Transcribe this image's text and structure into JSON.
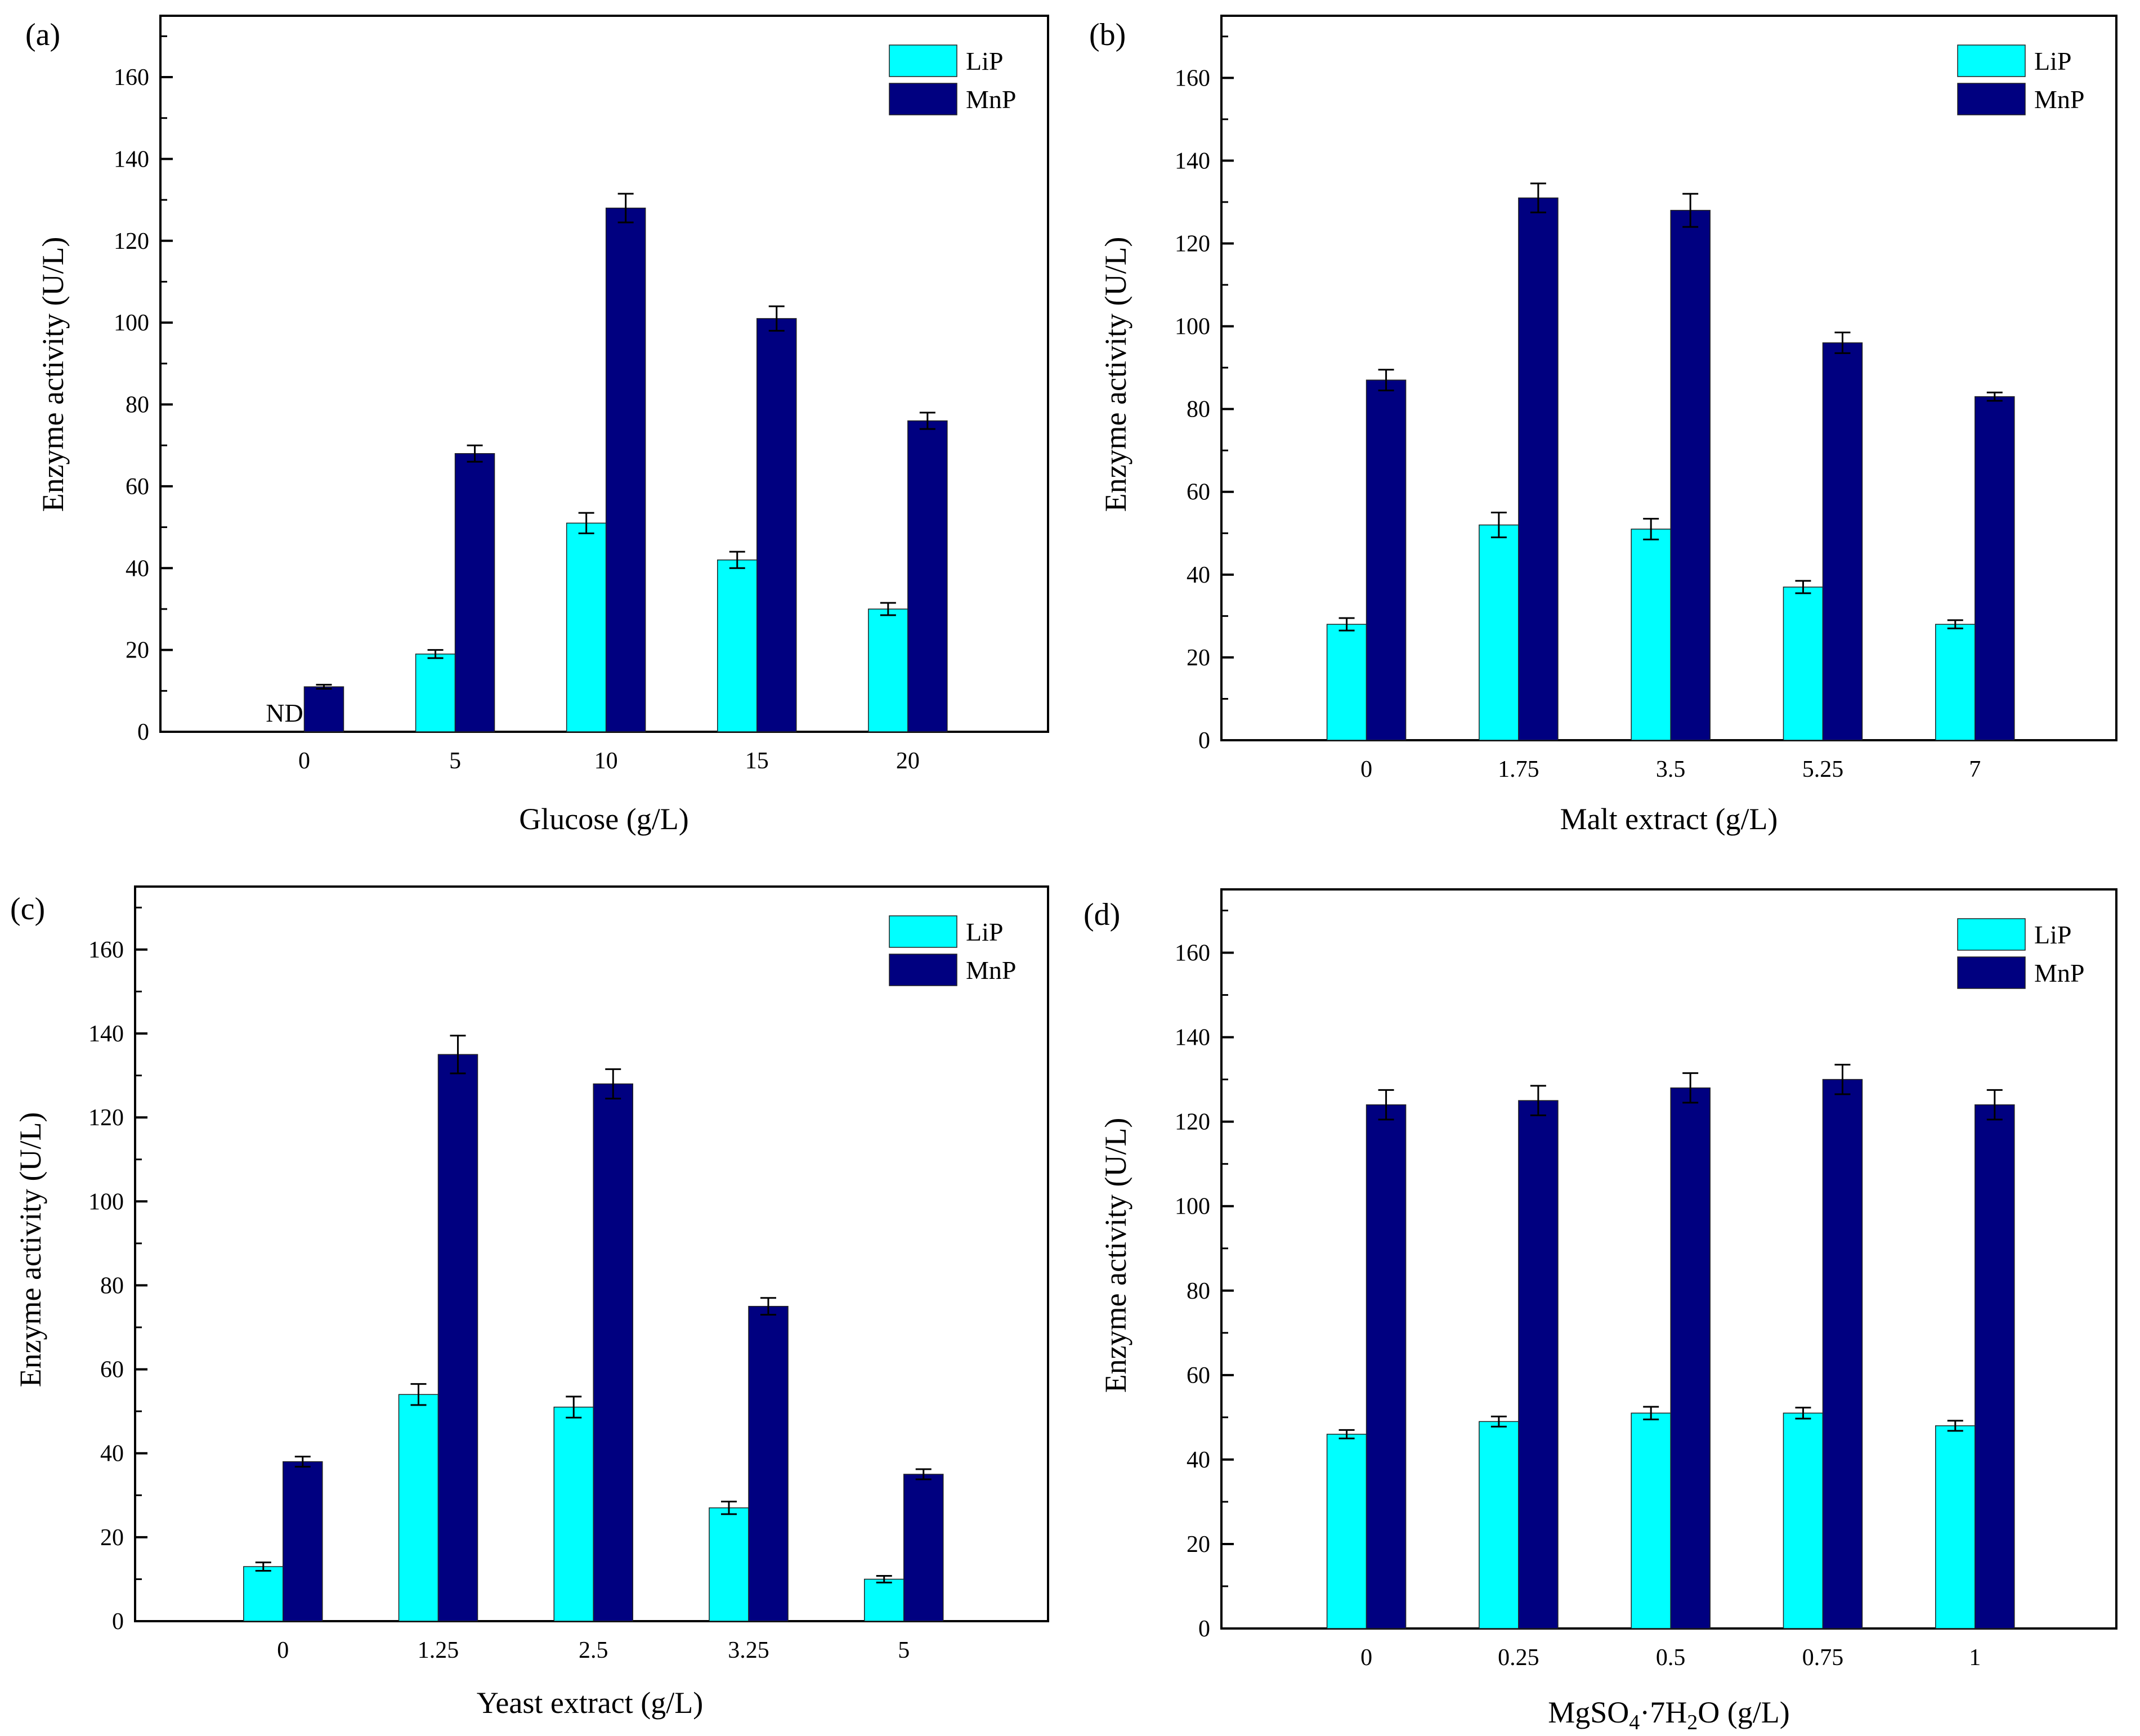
{
  "colors": {
    "lip": "#00FFFF",
    "mnp": "#000080",
    "axis": "#000000",
    "error_bar": "#000000"
  },
  "chart_data": [
    {
      "type": "bar",
      "panel_label": "(a)",
      "xlabel": "Glucose (g/L)",
      "ylabel": "Enzyme activity (U/L)",
      "ylim": [
        0,
        175
      ],
      "yticks": [
        0,
        20,
        40,
        60,
        80,
        100,
        120,
        140,
        160
      ],
      "legend_position": "top-right",
      "categories": [
        "0",
        "5",
        "10",
        "15",
        "20"
      ],
      "series": [
        {
          "name": "LiP",
          "values": [
            null,
            19,
            51,
            42,
            30
          ],
          "errors": [
            null,
            1,
            2.5,
            2,
            1.5
          ]
        },
        {
          "name": "MnP",
          "values": [
            11,
            68,
            128,
            101,
            76
          ],
          "errors": [
            0.5,
            2,
            3.5,
            3,
            2
          ]
        }
      ],
      "annotations": [
        {
          "text": "ND",
          "category": "0",
          "series": "LiP"
        }
      ]
    },
    {
      "type": "bar",
      "panel_label": "(b)",
      "xlabel": "Malt extract (g/L)",
      "ylabel": "Enzyme activity (U/L)",
      "ylim": [
        0,
        175
      ],
      "yticks": [
        0,
        20,
        40,
        60,
        80,
        100,
        120,
        140,
        160
      ],
      "legend_position": "top-right",
      "categories": [
        "0",
        "1.75",
        "3.5",
        "5.25",
        "7"
      ],
      "series": [
        {
          "name": "LiP",
          "values": [
            28,
            52,
            51,
            37,
            28
          ],
          "errors": [
            1.5,
            3,
            2.5,
            1.5,
            1
          ]
        },
        {
          "name": "MnP",
          "values": [
            87,
            131,
            128,
            96,
            83
          ],
          "errors": [
            2.5,
            3.5,
            4,
            2.5,
            1
          ]
        }
      ],
      "annotations": []
    },
    {
      "type": "bar",
      "panel_label": "(c)",
      "xlabel": "Yeast extract (g/L)",
      "ylabel": "Enzyme activity (U/L)",
      "ylim": [
        0,
        175
      ],
      "yticks": [
        0,
        20,
        40,
        60,
        80,
        100,
        120,
        140,
        160
      ],
      "legend_position": "top-right",
      "categories": [
        "0",
        "1.25",
        "2.5",
        "3.25",
        "5"
      ],
      "series": [
        {
          "name": "LiP",
          "values": [
            13,
            54,
            51,
            27,
            10
          ],
          "errors": [
            1,
            2.5,
            2.5,
            1.5,
            0.8
          ]
        },
        {
          "name": "MnP",
          "values": [
            38,
            135,
            128,
            75,
            35
          ],
          "errors": [
            1.2,
            4.5,
            3.5,
            2,
            1.2
          ]
        }
      ],
      "annotations": []
    },
    {
      "type": "bar",
      "panel_label": "(d)",
      "xlabel_main": "MgSO",
      "xlabel_sub1": "4",
      "xlabel_mid": "·7H",
      "xlabel_sub2": "2",
      "xlabel_end": "O (g/L)",
      "ylabel": "Enzyme activity (U/L)",
      "ylim": [
        0,
        175
      ],
      "yticks": [
        0,
        20,
        40,
        60,
        80,
        100,
        120,
        140,
        160
      ],
      "legend_position": "top-right",
      "categories": [
        "0",
        "0.25",
        "0.5",
        "0.75",
        "1"
      ],
      "series": [
        {
          "name": "LiP",
          "values": [
            46,
            49,
            51,
            51,
            48
          ],
          "errors": [
            1,
            1.2,
            1.5,
            1.3,
            1.2
          ]
        },
        {
          "name": "MnP",
          "values": [
            124,
            125,
            128,
            130,
            124
          ],
          "errors": [
            3.5,
            3.5,
            3.5,
            3.5,
            3.5
          ]
        }
      ],
      "annotations": []
    }
  ]
}
